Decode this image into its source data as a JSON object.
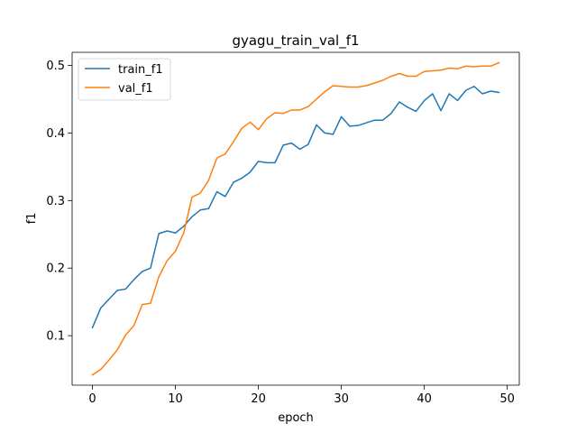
{
  "chart_data": {
    "type": "line",
    "title": "gyagu_train_val_f1",
    "xlabel": "epoch",
    "ylabel": "f1",
    "xlim": [
      -2.45,
      51.45
    ],
    "ylim": [
      0.0267,
      0.5194
    ],
    "xticks": [
      0,
      10,
      20,
      30,
      40,
      50
    ],
    "yticks": [
      0.1,
      0.2,
      0.3,
      0.4,
      0.5
    ],
    "ytick_labels": [
      "0.1",
      "0.2",
      "0.3",
      "0.4",
      "0.5"
    ],
    "grid": false,
    "legend_position": "upper-left",
    "x": [
      0,
      1,
      2,
      3,
      4,
      5,
      6,
      7,
      8,
      9,
      10,
      11,
      12,
      13,
      14,
      15,
      16,
      17,
      18,
      19,
      20,
      21,
      22,
      23,
      24,
      25,
      26,
      27,
      28,
      29,
      30,
      31,
      32,
      33,
      34,
      35,
      36,
      37,
      38,
      39,
      40,
      41,
      42,
      43,
      44,
      45,
      46,
      47,
      48,
      49
    ],
    "series": [
      {
        "name": "train_f1",
        "color": "#1f77b4",
        "values": [
          0.112,
          0.141,
          0.154,
          0.167,
          0.169,
          0.183,
          0.195,
          0.2,
          0.251,
          0.255,
          0.252,
          0.262,
          0.276,
          0.286,
          0.288,
          0.313,
          0.306,
          0.327,
          0.333,
          0.342,
          0.358,
          0.356,
          0.356,
          0.382,
          0.385,
          0.376,
          0.383,
          0.412,
          0.4,
          0.398,
          0.424,
          0.41,
          0.411,
          0.415,
          0.419,
          0.419,
          0.429,
          0.446,
          0.438,
          0.432,
          0.448,
          0.458,
          0.433,
          0.458,
          0.448,
          0.463,
          0.469,
          0.458,
          0.462,
          0.46
        ]
      },
      {
        "name": "val_f1",
        "color": "#ff7f0e",
        "values": [
          0.042,
          0.05,
          0.064,
          0.079,
          0.101,
          0.115,
          0.146,
          0.148,
          0.187,
          0.211,
          0.225,
          0.252,
          0.305,
          0.311,
          0.33,
          0.363,
          0.369,
          0.387,
          0.407,
          0.416,
          0.405,
          0.421,
          0.43,
          0.429,
          0.434,
          0.434,
          0.439,
          0.45,
          0.461,
          0.47,
          0.469,
          0.468,
          0.468,
          0.47,
          0.474,
          0.478,
          0.484,
          0.488,
          0.484,
          0.484,
          0.491,
          0.492,
          0.493,
          0.496,
          0.495,
          0.499,
          0.498,
          0.499,
          0.499,
          0.504
        ]
      }
    ]
  }
}
